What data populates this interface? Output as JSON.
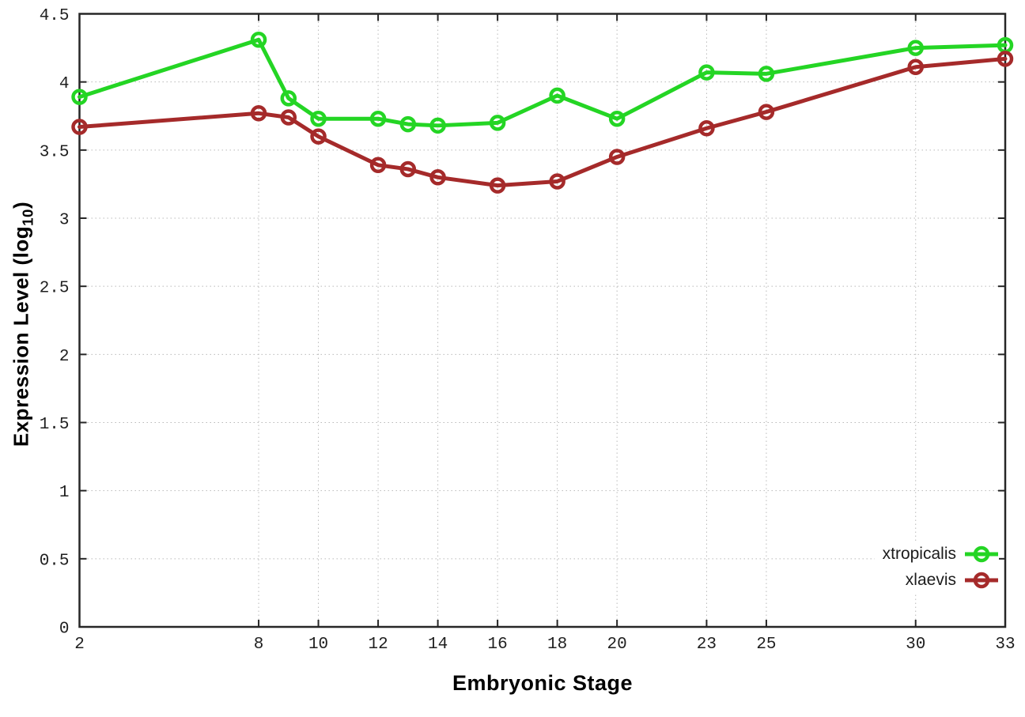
{
  "chart_data": {
    "type": "line",
    "title": "",
    "xlabel": "Embryonic Stage",
    "ylabel": "Expression Level (log10)",
    "ylabel_rich": {
      "prefix": "Expression Level (log",
      "subscript": "10",
      "suffix": ")"
    },
    "x": [
      2,
      8,
      9,
      10,
      12,
      13,
      14,
      16,
      18,
      20,
      23,
      25,
      30,
      33
    ],
    "series": [
      {
        "name": "xtropicalis",
        "color": "#24d524",
        "values": [
          3.89,
          4.31,
          3.88,
          3.73,
          3.73,
          3.69,
          3.68,
          3.7,
          3.9,
          3.73,
          4.07,
          4.06,
          4.25,
          4.27
        ]
      },
      {
        "name": "xlaevis",
        "color": "#a52a2a",
        "values": [
          3.67,
          3.77,
          3.74,
          3.6,
          3.39,
          3.36,
          3.3,
          3.24,
          3.27,
          3.45,
          3.66,
          3.78,
          4.11,
          4.17
        ]
      }
    ],
    "xlim": [
      2,
      33
    ],
    "ylim": [
      0,
      4.5
    ],
    "x_ticks": {
      "values": [
        2,
        8,
        10,
        12,
        14,
        16,
        18,
        20,
        23,
        25,
        30,
        33
      ],
      "labels": [
        "2",
        "8",
        "10",
        "12",
        "14",
        "16",
        "18",
        "20",
        "23",
        "25",
        "30",
        "33"
      ]
    },
    "y_ticks": {
      "values": [
        0,
        0.5,
        1,
        1.5,
        2,
        2.5,
        3,
        3.5,
        4,
        4.5
      ],
      "labels": [
        "0",
        "0.5",
        "1",
        "1.5",
        "2",
        "2.5",
        "3",
        "3.5",
        "4",
        "4.5"
      ]
    },
    "grid": "dotted",
    "legend_position": "bottom-right",
    "marker": "open-circle",
    "colors": {
      "axis": "#262626",
      "grid": "#b9b9b9",
      "tick_text": "#1f1f1f",
      "title_text": "#000000",
      "background": "#ffffff"
    }
  }
}
